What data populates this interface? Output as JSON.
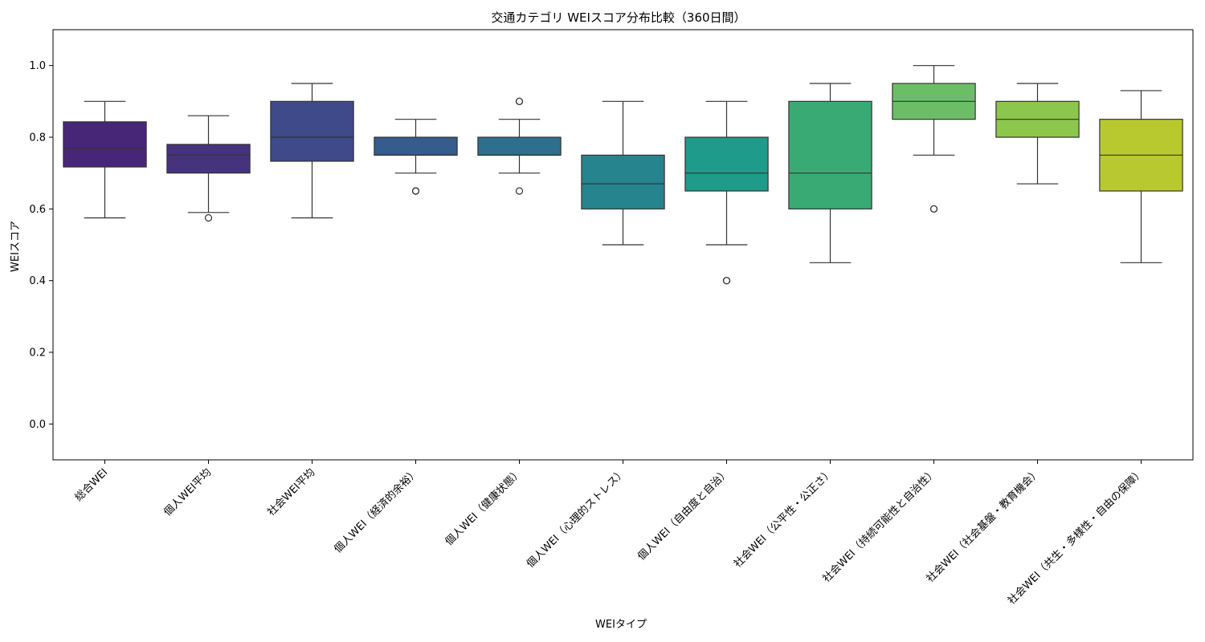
{
  "chart_data": {
    "type": "box",
    "title": "交通カテゴリ WEIスコア分布比較（360日間）",
    "xlabel": "WEIタイプ",
    "ylabel": "WEIスコア",
    "ylim": [
      -0.1,
      1.1
    ],
    "yticks": [
      "0.0",
      "0.2",
      "0.4",
      "0.6",
      "0.8",
      "1.0"
    ],
    "grid": false,
    "categories": [
      "総合WEI",
      "個人WEI平均",
      "社会WEI平均",
      "個人WEI（経済的余裕）",
      "個人WEI（健康状態）",
      "個人WEI（心理的ストレス）",
      "個人WEI（自由度と自治）",
      "社会WEI（公平性・公正さ）",
      "社会WEI（持続可能性と自治性）",
      "社会WEI（社会基盤・教育機会）",
      "社会WEI（共生・多様性・自由の保障）"
    ],
    "boxes": [
      {
        "whisker_low": 0.575,
        "q1": 0.717,
        "median": 0.77,
        "q3": 0.843,
        "whisker_high": 0.9,
        "outliers": [],
        "color": "#482677"
      },
      {
        "whisker_low": 0.59,
        "q1": 0.7,
        "median": 0.75,
        "q3": 0.78,
        "whisker_high": 0.86,
        "outliers": [
          0.575
        ],
        "color": "#46337e"
      },
      {
        "whisker_low": 0.575,
        "q1": 0.733,
        "median": 0.8,
        "q3": 0.9,
        "whisker_high": 0.95,
        "outliers": [],
        "color": "#3e4a89"
      },
      {
        "whisker_low": 0.7,
        "q1": 0.75,
        "median": 0.75,
        "q3": 0.8,
        "whisker_high": 0.85,
        "outliers": [
          0.65,
          0.65
        ],
        "color": "#365c8d"
      },
      {
        "whisker_low": 0.7,
        "q1": 0.75,
        "median": 0.75,
        "q3": 0.8,
        "whisker_high": 0.85,
        "outliers": [
          0.65,
          0.9,
          0.9
        ],
        "color": "#2d708e"
      },
      {
        "whisker_low": 0.5,
        "q1": 0.6,
        "median": 0.67,
        "q3": 0.75,
        "whisker_high": 0.9,
        "outliers": [],
        "color": "#25848e"
      },
      {
        "whisker_low": 0.5,
        "q1": 0.65,
        "median": 0.7,
        "q3": 0.8,
        "whisker_high": 0.9,
        "outliers": [
          0.4,
          0.4
        ],
        "color": "#1e9b8a"
      },
      {
        "whisker_low": 0.45,
        "q1": 0.6,
        "median": 0.7,
        "q3": 0.9,
        "whisker_high": 0.95,
        "outliers": [],
        "color": "#3aaa74"
      },
      {
        "whisker_low": 0.75,
        "q1": 0.85,
        "median": 0.9,
        "q3": 0.95,
        "whisker_high": 1.0,
        "outliers": [
          0.6,
          0.6
        ],
        "color": "#6cbe66"
      },
      {
        "whisker_low": 0.67,
        "q1": 0.8,
        "median": 0.85,
        "q3": 0.9,
        "whisker_high": 0.95,
        "outliers": [],
        "color": "#8cc64c"
      },
      {
        "whisker_low": 0.45,
        "q1": 0.65,
        "median": 0.75,
        "q3": 0.85,
        "whisker_high": 0.93,
        "outliers": [],
        "color": "#b8c930"
      }
    ]
  }
}
